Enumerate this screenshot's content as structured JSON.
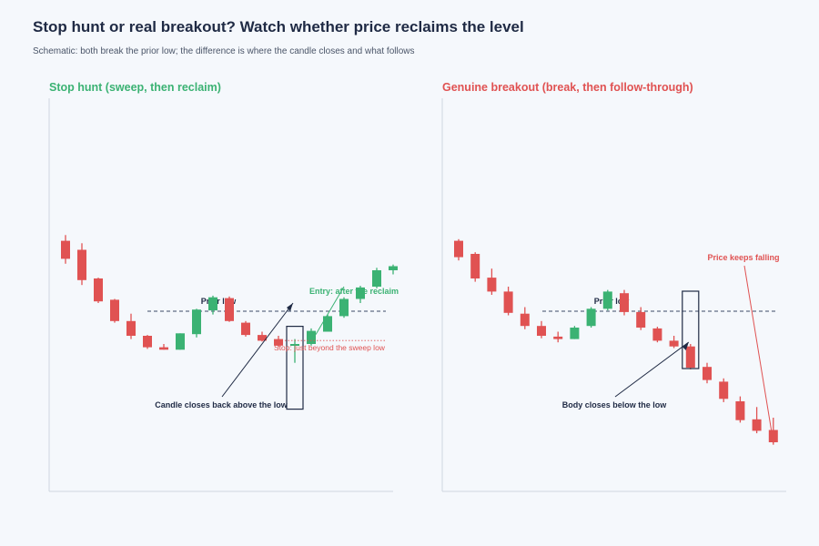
{
  "title": "Stop hunt or real breakout? Watch whether price reclaims the level",
  "subtitle": "Schematic: both break the prior low; the difference is where the candle closes and what follows",
  "colors": {
    "bull": "#3bb273",
    "bear": "#e05252",
    "ink": "#1f2a44",
    "muted": "#4a5568",
    "frame": "#cfd6e0",
    "level": "#3a4a66"
  },
  "chart_data": [
    {
      "type": "candlestick",
      "title": "Stop hunt (sweep, then reclaim)",
      "level": {
        "label": "Prior low",
        "value": 100
      },
      "candles": [
        {
          "o": 186,
          "h": 193,
          "l": 158,
          "c": 164
        },
        {
          "o": 175,
          "h": 183,
          "l": 132,
          "c": 138
        },
        {
          "o": 140,
          "h": 141,
          "l": 110,
          "c": 112
        },
        {
          "o": 114,
          "h": 115,
          "l": 86,
          "c": 88
        },
        {
          "o": 88,
          "h": 97,
          "l": 66,
          "c": 70
        },
        {
          "o": 70,
          "h": 71,
          "l": 54,
          "c": 56
        },
        {
          "o": 56,
          "h": 60,
          "l": 53,
          "c": 53
        },
        {
          "o": 53,
          "h": 73,
          "l": 53,
          "c": 73
        },
        {
          "o": 72,
          "h": 103,
          "l": 68,
          "c": 102
        },
        {
          "o": 101,
          "h": 119,
          "l": 96,
          "c": 117
        },
        {
          "o": 116,
          "h": 118,
          "l": 87,
          "c": 88
        },
        {
          "o": 86,
          "h": 88,
          "l": 69,
          "c": 71
        },
        {
          "o": 71,
          "h": 75,
          "l": 63,
          "c": 64
        },
        {
          "o": 66,
          "h": 70,
          "l": 56,
          "c": 58
        },
        {
          "o": 58,
          "h": 66,
          "l": 37,
          "c": 60
        },
        {
          "o": 60,
          "h": 79,
          "l": 58,
          "c": 76
        },
        {
          "o": 75,
          "h": 96,
          "l": 75,
          "c": 94
        },
        {
          "o": 94,
          "h": 117,
          "l": 92,
          "c": 115
        },
        {
          "o": 115,
          "h": 131,
          "l": 110,
          "c": 129
        },
        {
          "o": 130,
          "h": 153,
          "l": 128,
          "c": 150
        },
        {
          "o": 150,
          "h": 157,
          "l": 145,
          "c": 155
        }
      ],
      "annotations": [
        {
          "text": "Entry: after the reclaim"
        },
        {
          "text": "Stop: just beyond the sweep low",
          "value": 62
        },
        {
          "text": "Candle closes back above the low"
        }
      ]
    },
    {
      "type": "candlestick",
      "title": "Genuine breakout (break, then follow-through)",
      "level": {
        "label": "Prior low",
        "value": 100
      },
      "candles": [
        {
          "o": 186,
          "h": 188,
          "l": 162,
          "c": 166
        },
        {
          "o": 170,
          "h": 172,
          "l": 136,
          "c": 140
        },
        {
          "o": 141,
          "h": 152,
          "l": 120,
          "c": 124
        },
        {
          "o": 124,
          "h": 130,
          "l": 95,
          "c": 98
        },
        {
          "o": 97,
          "h": 105,
          "l": 78,
          "c": 82
        },
        {
          "o": 82,
          "h": 88,
          "l": 67,
          "c": 70
        },
        {
          "o": 69,
          "h": 75,
          "l": 62,
          "c": 66
        },
        {
          "o": 66,
          "h": 82,
          "l": 66,
          "c": 80
        },
        {
          "o": 82,
          "h": 105,
          "l": 80,
          "c": 103
        },
        {
          "o": 103,
          "h": 126,
          "l": 101,
          "c": 124
        },
        {
          "o": 122,
          "h": 126,
          "l": 95,
          "c": 99
        },
        {
          "o": 99,
          "h": 105,
          "l": 77,
          "c": 80
        },
        {
          "o": 79,
          "h": 81,
          "l": 62,
          "c": 64
        },
        {
          "o": 64,
          "h": 70,
          "l": 55,
          "c": 57
        },
        {
          "o": 57,
          "h": 60,
          "l": 29,
          "c": 31
        },
        {
          "o": 32,
          "h": 37,
          "l": 12,
          "c": 16
        },
        {
          "o": 14,
          "h": 18,
          "l": -11,
          "c": -7
        },
        {
          "o": -10,
          "h": -4,
          "l": -36,
          "c": -33
        },
        {
          "o": -32,
          "h": -17,
          "l": -49,
          "c": -46
        },
        {
          "o": -45,
          "h": -30,
          "l": -63,
          "c": -60
        }
      ],
      "annotations": [
        {
          "text": "Price keeps falling"
        },
        {
          "text": "Body closes below the low"
        }
      ]
    }
  ]
}
